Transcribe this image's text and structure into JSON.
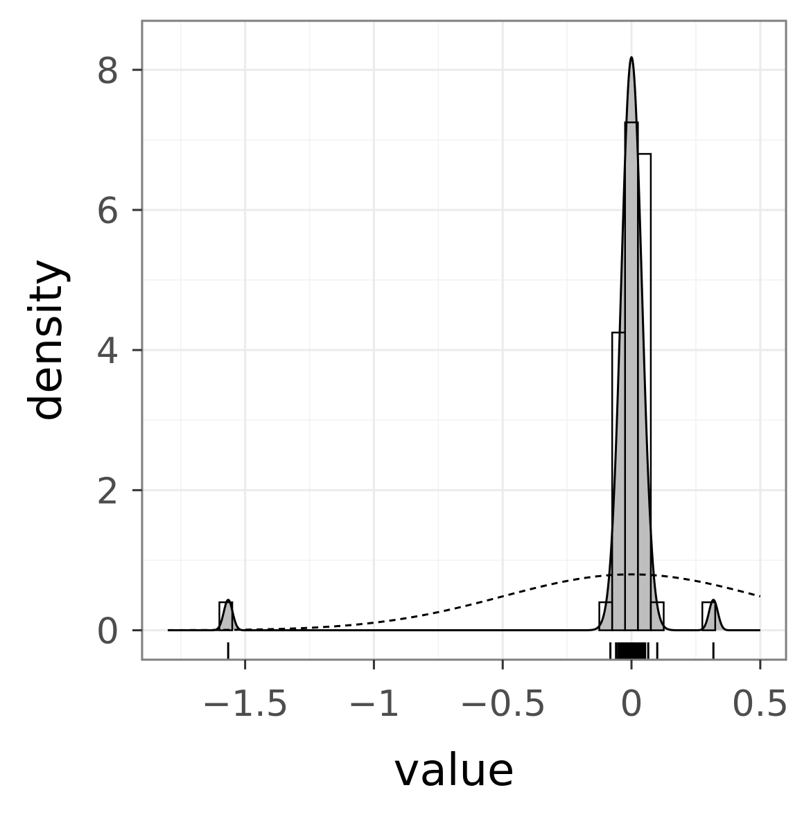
{
  "chart_data": {
    "type": "histogram",
    "xlabel": "value",
    "ylabel": "density",
    "xlim": [
      -1.9,
      0.6
    ],
    "ylim": [
      -0.42,
      8.7
    ],
    "grid": true,
    "theme": "bw",
    "x_ticks": [
      -1.5,
      -1,
      -0.5,
      0,
      0.5
    ],
    "x_tick_labels": [
      "−1.5",
      "−1",
      "−0.5",
      "0",
      "0.5"
    ],
    "y_ticks": [
      0,
      2,
      4,
      6,
      8
    ],
    "y_tick_labels": [
      "0",
      "2",
      "4",
      "6",
      "8"
    ],
    "histogram": {
      "bin_width": 0.05,
      "bins": [
        {
          "x0": -1.6,
          "x1": -1.55,
          "density": 0.4
        },
        {
          "x0": -0.125,
          "x1": -0.075,
          "density": 0.4
        },
        {
          "x0": -0.075,
          "x1": -0.025,
          "density": 4.25
        },
        {
          "x0": -0.025,
          "x1": 0.025,
          "density": 7.25
        },
        {
          "x0": 0.025,
          "x1": 0.075,
          "density": 6.8
        },
        {
          "x0": 0.075,
          "x1": 0.125,
          "density": 0.4
        },
        {
          "x0": 0.275,
          "x1": 0.325,
          "density": 0.4
        }
      ]
    },
    "kernel_density": {
      "components": [
        {
          "mu": -1.5658,
          "sd": 0.017,
          "weight": 0.0185
        },
        {
          "mu": 0.0,
          "sd": 0.04,
          "weight": 0.82
        },
        {
          "mu": 0.318,
          "sd": 0.017,
          "weight": 0.0185
        }
      ],
      "x_range": [
        -1.8,
        0.5
      ],
      "fill": "#bebebe"
    },
    "normal_fit": {
      "mean": 0.0,
      "sd": 0.5,
      "x_range": [
        -1.8,
        0.5
      ],
      "linetype": "dashed"
    },
    "rug": [
      -1.5658,
      -0.082,
      -0.06,
      -0.052,
      -0.047,
      -0.043,
      -0.039,
      -0.035,
      -0.031,
      -0.027,
      -0.023,
      -0.019,
      -0.015,
      -0.011,
      -0.007,
      -0.003,
      0.001,
      0.005,
      0.009,
      0.013,
      0.017,
      0.021,
      0.025,
      0.029,
      0.033,
      0.037,
      0.041,
      0.045,
      0.049,
      0.053,
      0.065,
      0.1,
      0.318
    ]
  }
}
